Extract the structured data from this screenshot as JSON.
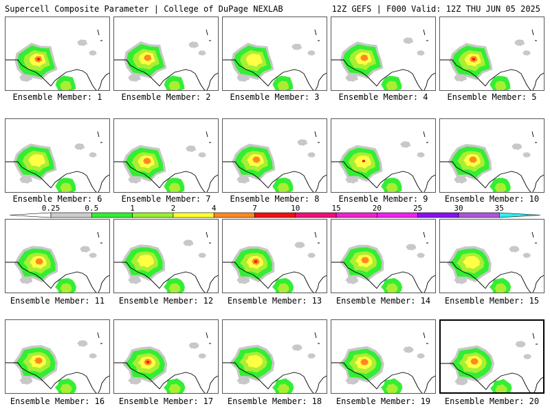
{
  "header": {
    "title_left": "Supercell Composite Parameter | College of DuPage NEXLAB",
    "title_right": "12Z GEFS | F000 Valid: 12Z THU JUN 05 2025"
  },
  "members": [
    {
      "label": "Ensemble Member: 1"
    },
    {
      "label": "Ensemble Member: 2"
    },
    {
      "label": "Ensemble Member: 3"
    },
    {
      "label": "Ensemble Member: 4"
    },
    {
      "label": "Ensemble Member: 5"
    },
    {
      "label": "Ensemble Member: 6"
    },
    {
      "label": "Ensemble Member: 7"
    },
    {
      "label": "Ensemble Member: 8"
    },
    {
      "label": "Ensemble Member: 9"
    },
    {
      "label": "Ensemble Member: 10"
    },
    {
      "label": "Ensemble Member: 11"
    },
    {
      "label": "Ensemble Member: 12"
    },
    {
      "label": "Ensemble Member: 13"
    },
    {
      "label": "Ensemble Member: 14"
    },
    {
      "label": "Ensemble Member: 15"
    },
    {
      "label": "Ensemble Member: 16"
    },
    {
      "label": "Ensemble Member: 17"
    },
    {
      "label": "Ensemble Member: 18"
    },
    {
      "label": "Ensemble Member: 19"
    },
    {
      "label": "Ensemble Member: 20",
      "selected": true
    }
  ],
  "colorbar": {
    "labels": [
      "0.25",
      "0.5",
      "1",
      "2",
      "4",
      "7",
      "10",
      "15",
      "20",
      "25",
      "30",
      "35"
    ],
    "colors": [
      "#ffffff",
      "#cccccc",
      "#33ee33",
      "#99ee33",
      "#ffff33",
      "#ff8822",
      "#ee1111",
      "#ee1177",
      "#ee22cc",
      "#ee22ee",
      "#8811ee",
      "#aa55dd",
      "#33eeee"
    ]
  },
  "field_colors": {
    "light": "#c8c8c8",
    "green": "#33ee33",
    "lime": "#aaee33",
    "yellow": "#ffff44",
    "orange": "#ff8822",
    "red": "#ee1111"
  }
}
